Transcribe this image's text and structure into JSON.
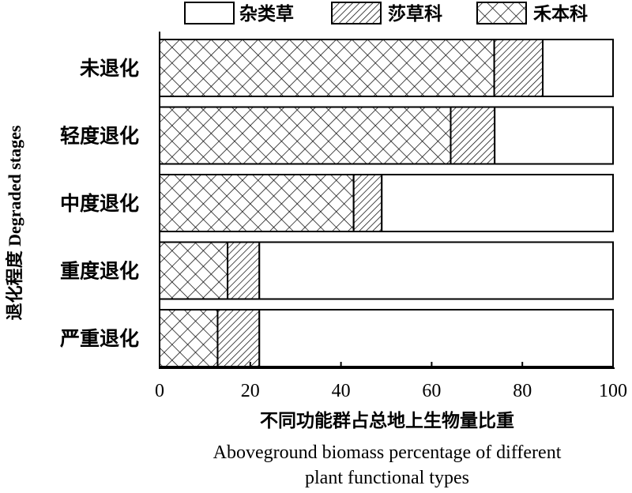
{
  "chart_data": {
    "type": "bar",
    "orientation": "horizontal",
    "stacked": true,
    "categories": [
      "未退化",
      "轻度退化",
      "中度退化",
      "重度退化",
      "严重退化"
    ],
    "series": [
      {
        "name": "禾本科",
        "pattern": "crosshatch",
        "values": [
          73.8,
          64.2,
          42.8,
          15.0,
          12.8
        ]
      },
      {
        "name": "莎草科",
        "pattern": "diagonal",
        "values": [
          10.7,
          9.7,
          6.2,
          7.0,
          9.2
        ]
      },
      {
        "name": "杂类草",
        "pattern": "blank",
        "values": [
          15.5,
          26.1,
          51.0,
          78.0,
          78.0
        ]
      }
    ],
    "legend_order": [
      "杂类草",
      "莎草科",
      "禾本科"
    ],
    "legend_position": "top",
    "xlabel_cn": "不同功能群占总地上生物量比重",
    "xlabel_en_line1": "Aboveground biomass percentage of different",
    "xlabel_en_line2": "plant functional types",
    "ylabel": "退化程度 Degraded stages",
    "xlim": [
      0,
      100
    ],
    "xticks": [
      0,
      20,
      40,
      60,
      80,
      100
    ],
    "grid": false,
    "colors": {
      "stroke": "#000000",
      "fill": "#ffffff"
    }
  }
}
